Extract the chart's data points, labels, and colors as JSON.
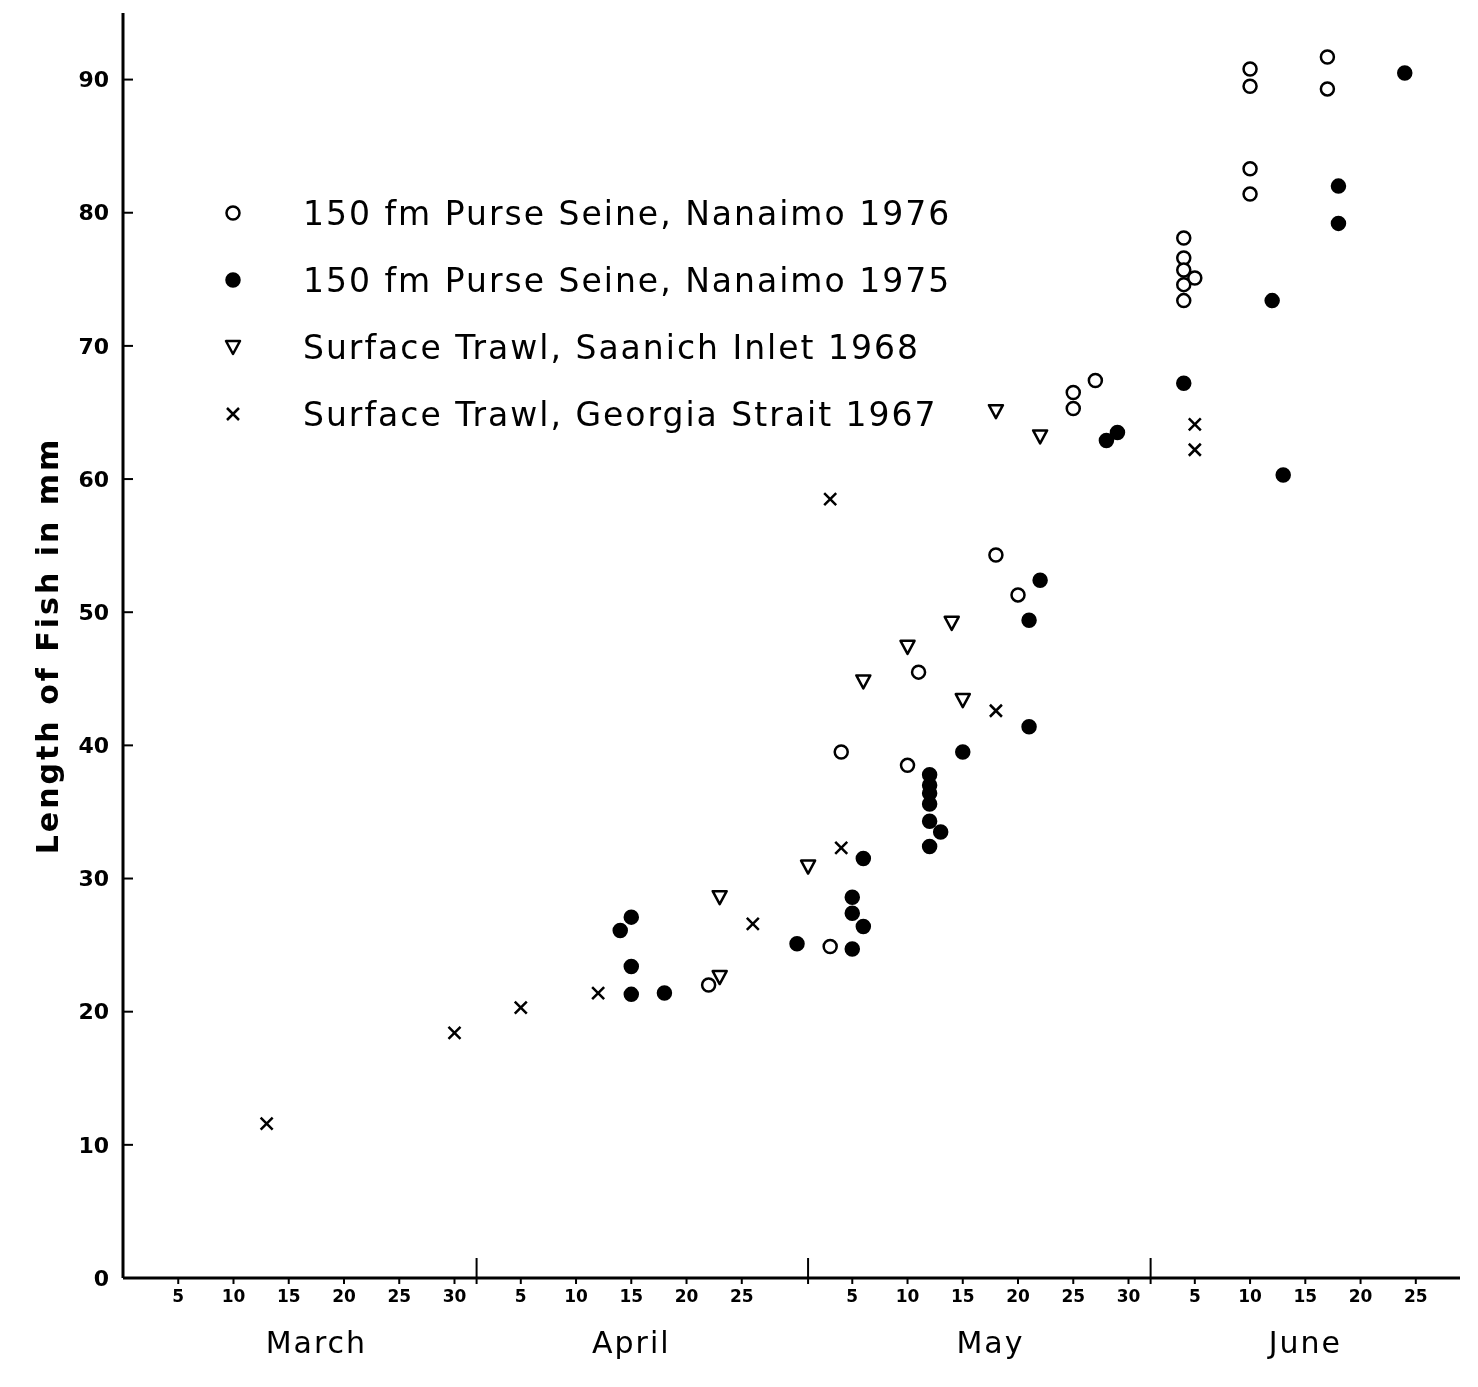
{
  "chart_data": {
    "type": "scatter",
    "ylabel": "Length of Fish in mm",
    "ylim": [
      0,
      95
    ],
    "yticks": [
      0,
      10,
      20,
      30,
      40,
      50,
      60,
      70,
      80,
      90
    ],
    "xlim": [
      "--02-28",
      "--06-29"
    ],
    "xticks": [
      {
        "value": "--03-05",
        "label": "5"
      },
      {
        "value": "--03-10",
        "label": "10"
      },
      {
        "value": "--03-15",
        "label": "15"
      },
      {
        "value": "--03-20",
        "label": "20"
      },
      {
        "value": "--03-25",
        "label": "25"
      },
      {
        "value": "--03-30",
        "label": "30"
      },
      {
        "value": "--04-05",
        "label": "5"
      },
      {
        "value": "--04-10",
        "label": "10"
      },
      {
        "value": "--04-15",
        "label": "15"
      },
      {
        "value": "--04-20",
        "label": "20"
      },
      {
        "value": "--04-25",
        "label": "25"
      },
      {
        "value": "--05-05",
        "label": "5"
      },
      {
        "value": "--05-10",
        "label": "10"
      },
      {
        "value": "--05-15",
        "label": "15"
      },
      {
        "value": "--05-20",
        "label": "20"
      },
      {
        "value": "--05-25",
        "label": "25"
      },
      {
        "value": "--05-30",
        "label": "30"
      },
      {
        "value": "--06-05",
        "label": "5"
      },
      {
        "value": "--06-10",
        "label": "10"
      },
      {
        "value": "--06-15",
        "label": "15"
      },
      {
        "value": "--06-20",
        "label": "20"
      },
      {
        "value": "--06-25",
        "label": "25"
      }
    ],
    "annotations": [
      "March",
      "April",
      "May",
      "June"
    ],
    "grid": false,
    "legend": "top left",
    "series": [
      {
        "name": "150 fm Purse Seine, Nanaimo 1976",
        "color": "#ffffff",
        "marker": "circle",
        "x": [
          "--04-22",
          "--05-03",
          "--05-04",
          "--05-10",
          "--05-11",
          "--05-18",
          "--05-20",
          "--05-25",
          "--05-25",
          "--05-27",
          "--06-04",
          "--06-04",
          "--06-04",
          "--06-04",
          "--06-04",
          "--06-05",
          "--06-10",
          "--06-10",
          "--06-10",
          "--06-10",
          "--06-17",
          "--06-17"
        ],
        "values": [
          22.0,
          24.9,
          39.5,
          38.5,
          45.5,
          54.3,
          51.3,
          66.5,
          65.3,
          67.4,
          78.1,
          76.6,
          75.7,
          74.6,
          73.4,
          75.1,
          81.4,
          83.3,
          90.8,
          89.5,
          91.7,
          89.3
        ]
      },
      {
        "name": "150 fm Purse Seine, Nanaimo 1975",
        "color": "#000000",
        "marker": "circle",
        "x": [
          "--04-14",
          "--04-15",
          "--04-15",
          "--04-15",
          "--04-18",
          "--04-30",
          "--05-05",
          "--05-05",
          "--05-05",
          "--05-06",
          "--05-06",
          "--05-12",
          "--05-12",
          "--05-12",
          "--05-12",
          "--05-12",
          "--05-12",
          "--05-13",
          "--05-15",
          "--05-21",
          "--05-21",
          "--05-22",
          "--05-28",
          "--05-29",
          "--06-04",
          "--06-12",
          "--06-13",
          "--06-18",
          "--06-18",
          "--06-24"
        ],
        "values": [
          26.1,
          27.1,
          23.4,
          21.3,
          21.4,
          25.1,
          28.6,
          27.4,
          24.7,
          31.5,
          26.4,
          37.8,
          37.0,
          36.4,
          35.6,
          34.3,
          32.4,
          33.5,
          39.5,
          49.4,
          41.4,
          52.4,
          62.9,
          63.5,
          67.2,
          73.4,
          60.3,
          79.2,
          82.0,
          90.5
        ]
      },
      {
        "name": "Surface Trawl, Saanich Inlet 1968",
        "color": "#ffffff",
        "marker": "triangle",
        "x": [
          "--04-23",
          "--04-23",
          "--05-01",
          "--05-06",
          "--05-10",
          "--05-14",
          "--05-15",
          "--05-18",
          "--05-22"
        ],
        "values": [
          22.6,
          28.6,
          30.9,
          44.8,
          47.4,
          49.2,
          43.4,
          65.1,
          63.2
        ]
      },
      {
        "name": "Surface Trawl, Georgia Strait 1967",
        "color": "#000000",
        "marker": "cross",
        "x": [
          "--03-13",
          "--03-30",
          "--04-05",
          "--04-12",
          "--04-26",
          "--05-03",
          "--05-04",
          "--05-18",
          "--06-05",
          "--06-05"
        ],
        "values": [
          11.6,
          18.4,
          20.3,
          21.4,
          26.6,
          58.5,
          32.3,
          42.6,
          64.1,
          62.2
        ]
      }
    ]
  }
}
